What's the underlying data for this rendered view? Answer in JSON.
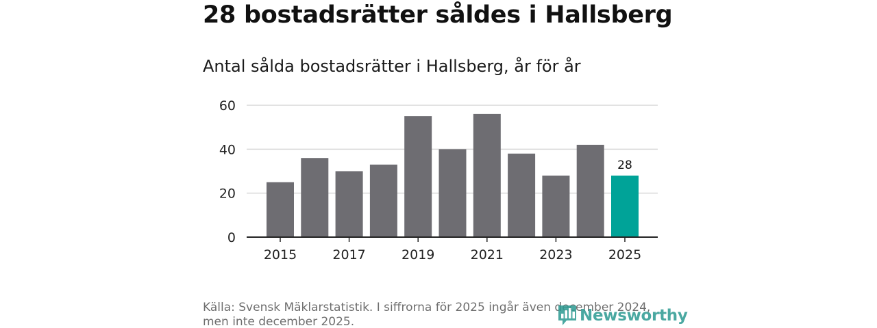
{
  "headline": "28 bostadsrätter såldes i Hallsberg",
  "brand": {
    "name": "Newsworthy",
    "icon": "bar-chart-speech-icon",
    "color": "#2b9a91"
  },
  "source_note": "Källa: Svensk Mäklarstatistik. I siffrorna för 2025 ingår även december 2024, men inte december 2025.",
  "colors": {
    "bar": "#6e6d72",
    "highlight": "#00a398",
    "grid": "#d9d9d9",
    "axis": "#222222",
    "tick_text": "#222222"
  },
  "chart_data": {
    "type": "bar",
    "title": "Antal sålda bostadsrätter i Hallsberg, år för år",
    "categories": [
      "2015",
      "2016",
      "2017",
      "2018",
      "2019",
      "2020",
      "2021",
      "2022",
      "2023",
      "2024",
      "2025"
    ],
    "values": [
      25,
      36,
      30,
      33,
      55,
      40,
      56,
      38,
      28,
      42,
      28
    ],
    "highlight_category": "2025",
    "data_labels": [
      {
        "category": "2025",
        "text": "28"
      }
    ],
    "x_tick_labels": [
      "2015",
      "2017",
      "2019",
      "2021",
      "2023",
      "2025"
    ],
    "y_ticks": [
      0,
      20,
      40,
      60
    ],
    "ylim": [
      0,
      60
    ],
    "xlabel": "",
    "ylabel": "",
    "grid": true
  }
}
